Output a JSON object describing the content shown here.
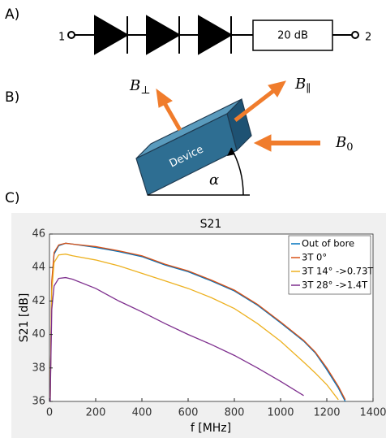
{
  "panels": {
    "a": "A)",
    "b": "B)",
    "c": "C)"
  },
  "circuit": {
    "port_in": "1",
    "port_out": "2",
    "attenuator": "20 dB"
  },
  "device": {
    "label": "Device",
    "angle": "α",
    "b_perp": {
      "symbol": "B",
      "subscript": "⊥"
    },
    "b_par": {
      "symbol": "B",
      "subscript": "∥"
    },
    "b_0": {
      "symbol": "B",
      "subscript": "0"
    }
  },
  "chart_data": {
    "type": "line",
    "title": "S21",
    "x_label": "f [MHz]",
    "y_label": "S21 [dB]",
    "x": [
      3,
      10,
      20,
      40,
      70,
      100,
      200,
      300,
      400,
      500,
      600,
      700,
      800,
      900,
      1000,
      1100,
      1150,
      1200,
      1250,
      1280
    ],
    "series": [
      {
        "name": "Out of bore",
        "color": "#0072bd",
        "values": [
          36,
          43,
          44.8,
          45.3,
          45.45,
          45.4,
          45.2,
          44.95,
          44.65,
          44.15,
          43.75,
          43.2,
          42.6,
          41.75,
          40.7,
          39.6,
          38.9,
          37.9,
          36.8,
          36.0
        ]
      },
      {
        "name": "3T 0°",
        "color": "#d95319",
        "values": [
          36,
          43.2,
          44.9,
          45.35,
          45.45,
          45.4,
          45.25,
          45.0,
          44.7,
          44.2,
          43.8,
          43.25,
          42.65,
          41.8,
          40.75,
          39.65,
          38.95,
          38.0,
          36.9,
          36.1
        ]
      },
      {
        "name": "3T 14° ->0.73T",
        "color": "#edb120",
        "values": [
          36,
          42.6,
          44.3,
          44.75,
          44.8,
          44.7,
          44.45,
          44.1,
          43.65,
          43.2,
          42.75,
          42.2,
          41.55,
          40.65,
          39.6,
          38.35,
          37.7,
          37.0,
          36.1,
          null
        ]
      },
      {
        "name": "3T 28° ->1.4T",
        "color": "#7e2f8e",
        "values": [
          36,
          41.5,
          42.9,
          43.35,
          43.4,
          43.3,
          42.75,
          42.0,
          41.35,
          40.65,
          40.0,
          39.4,
          38.75,
          38.0,
          37.2,
          36.35,
          null,
          null,
          null,
          null
        ]
      }
    ],
    "xlim": [
      0,
      1400
    ],
    "ylim": [
      36,
      46
    ],
    "xticks": [
      0,
      200,
      400,
      600,
      800,
      1000,
      1200,
      1400
    ],
    "yticks": [
      36,
      38,
      40,
      42,
      44,
      46
    ],
    "grid": false,
    "legend": "top-right"
  }
}
